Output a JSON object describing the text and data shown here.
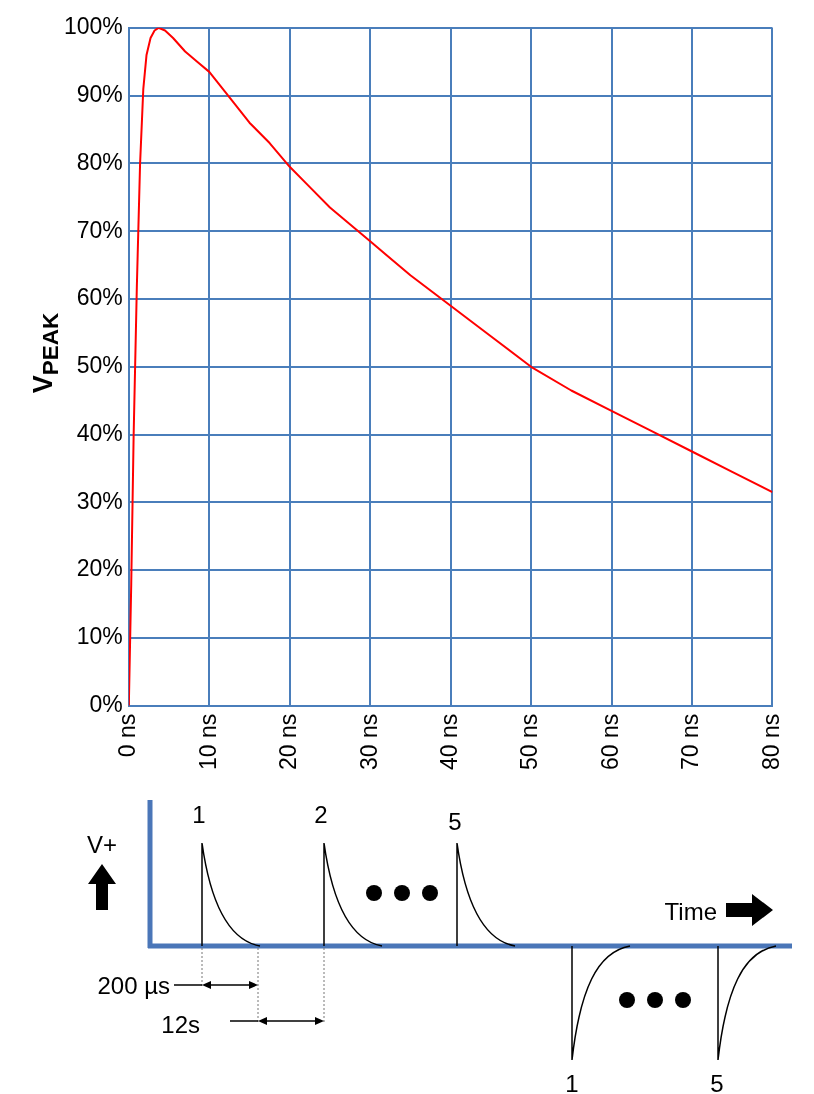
{
  "chart_data": [
    {
      "type": "line",
      "ylabel": "V$_{PEAK}$",
      "grid": true,
      "x": [
        0,
        0.3,
        0.6,
        1,
        1.4,
        1.8,
        2.2,
        2.7,
        3.2,
        3.7,
        4.5,
        5.5,
        7,
        8.5,
        10,
        12,
        15,
        17.5,
        20,
        22.5,
        25,
        30,
        35,
        40,
        45,
        50,
        55,
        60,
        65,
        70,
        75,
        80
      ],
      "series": [
        {
          "color": "#ff0000",
          "values": [
            0,
            18,
            40,
            62,
            80,
            91,
            96,
            98.5,
            99.6,
            100,
            99.6,
            98.5,
            96.5,
            95,
            93.5,
            90.5,
            86,
            83,
            79.5,
            76.5,
            73.5,
            68.5,
            63.5,
            59,
            54.5,
            50,
            46.5,
            43.5,
            40.5,
            37.5,
            34.5,
            31.5
          ]
        }
      ],
      "xlim": [
        0,
        80
      ],
      "xticks": [
        {
          "value": 0,
          "label": "0 ns"
        },
        {
          "value": 10,
          "label": "10 ns"
        },
        {
          "value": 20,
          "label": "20 ns"
        },
        {
          "value": 30,
          "label": "30 ns"
        },
        {
          "value": 40,
          "label": "40 ns"
        },
        {
          "value": 50,
          "label": "50 ns"
        },
        {
          "value": 60,
          "label": "60 ns"
        },
        {
          "value": 70,
          "label": "70 ns"
        },
        {
          "value": 80,
          "label": "80 ns"
        }
      ],
      "ylim": [
        0,
        100
      ],
      "yticks": [
        {
          "value": 0,
          "label": "0%"
        },
        {
          "value": 10,
          "label": "10%"
        },
        {
          "value": 20,
          "label": "20%"
        },
        {
          "value": 30,
          "label": "30%"
        },
        {
          "value": 40,
          "label": "40%"
        },
        {
          "value": 50,
          "label": "50%"
        },
        {
          "value": 60,
          "label": "60%"
        },
        {
          "value": 70,
          "label": "70%"
        },
        {
          "value": 80,
          "label": "80%"
        },
        {
          "value": 90,
          "label": "90%"
        },
        {
          "value": 100,
          "label": "100%"
        }
      ]
    },
    {
      "type": "other",
      "annotations": [
        "V+",
        "Time",
        "1",
        "2",
        "5",
        "200 µs",
        "12s",
        "1",
        "5"
      ]
    }
  ]
}
